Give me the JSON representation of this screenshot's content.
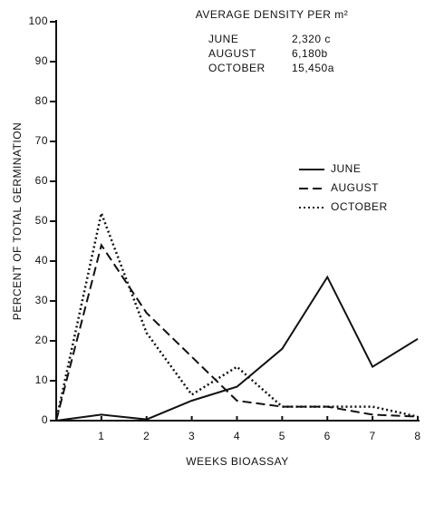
{
  "chart_data": {
    "type": "line",
    "annotation": {
      "title": "AVERAGE DENSITY PER m²",
      "rows": [
        [
          "JUNE",
          "2,320 c"
        ],
        [
          "AUGUST",
          "6,180b"
        ],
        [
          "OCTOBER",
          "15,450a"
        ]
      ]
    },
    "xlabel": "WEEKS BIOASSAY",
    "ylabel": "PERCENT OF TOTAL GERMINATION",
    "x": [
      0,
      1,
      2,
      3,
      4,
      5,
      6,
      7,
      8
    ],
    "series": [
      {
        "name": "JUNE",
        "color": "#111111",
        "dash": "solid",
        "values": [
          0,
          1.5,
          0.3,
          5,
          8.5,
          18,
          36,
          13.5,
          20.5
        ]
      },
      {
        "name": "AUGUST",
        "color": "#111111",
        "dash": "dashed",
        "values": [
          0,
          44,
          27,
          16,
          5,
          3.5,
          3.5,
          1.5,
          1
        ]
      },
      {
        "name": "OCTOBER",
        "color": "#111111",
        "dash": "dotted",
        "values": [
          0,
          52,
          22,
          6.5,
          13.5,
          3.5,
          3.5,
          3.5,
          1
        ]
      }
    ],
    "xlim": [
      0,
      8
    ],
    "xticks": [
      1,
      2,
      3,
      4,
      5,
      6,
      7,
      8
    ],
    "ylim": [
      0,
      100
    ],
    "yticks": [
      0,
      10,
      20,
      30,
      40,
      50,
      60,
      70,
      80,
      90,
      100
    ],
    "grid": false,
    "legend": "right"
  }
}
